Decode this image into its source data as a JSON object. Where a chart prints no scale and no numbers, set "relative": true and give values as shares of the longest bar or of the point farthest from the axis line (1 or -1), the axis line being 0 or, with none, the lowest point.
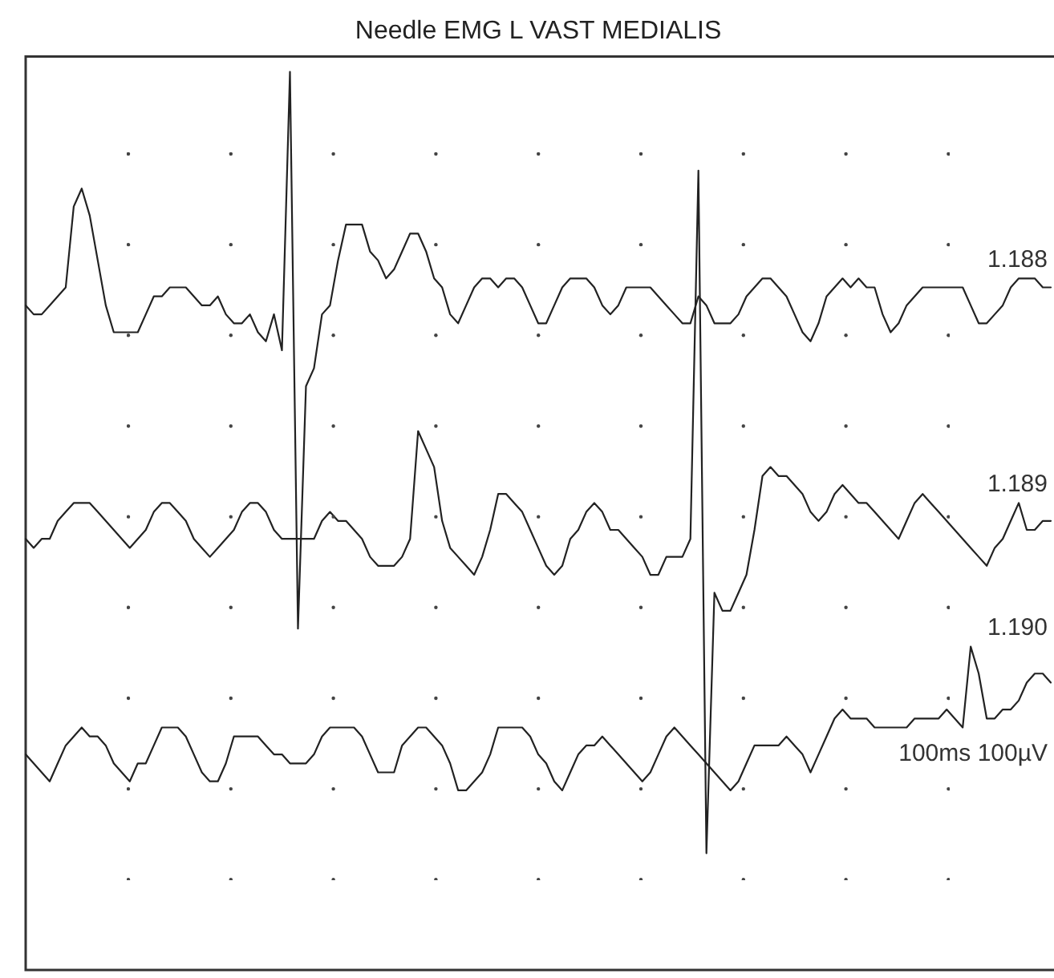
{
  "chart_data": {
    "type": "line",
    "title": "Needle EMG L VAST MEDIALIS",
    "relative": true,
    "legend": false,
    "marker": "none",
    "line_style": "solid",
    "categories": [
      null,
      null,
      null,
      null,
      null,
      null,
      null,
      null,
      null,
      null,
      null,
      null,
      null,
      null,
      null,
      null,
      null,
      null,
      null,
      null,
      null,
      null,
      null,
      null,
      null,
      null,
      null,
      null,
      null,
      null,
      null,
      null,
      null,
      null,
      null,
      null,
      null,
      null,
      null,
      null,
      null,
      null,
      null,
      null,
      null,
      null,
      null,
      null,
      null,
      null,
      null,
      null,
      null,
      null,
      null,
      null,
      null,
      null,
      null,
      null,
      null,
      null,
      null,
      null,
      null,
      null,
      null,
      null,
      null,
      null,
      null,
      null,
      null,
      null,
      null,
      null,
      null,
      null,
      null,
      null,
      null,
      null,
      null,
      null,
      null,
      null,
      null,
      null,
      null,
      null,
      null,
      null,
      null,
      null,
      null,
      null,
      null,
      null,
      null,
      null,
      null,
      null,
      null,
      null,
      null,
      null,
      null,
      null,
      null,
      null,
      null,
      null,
      null,
      null,
      null,
      null,
      null,
      null,
      null,
      null,
      null,
      null,
      null,
      null,
      null,
      null,
      null,
      null,
      null
    ],
    "series": [
      {
        "color": "#222222",
        "values": [
          0.74,
          0.73,
          0.73,
          0.74,
          0.75,
          0.76,
          0.85,
          0.87,
          0.84,
          0.79,
          0.74,
          0.71,
          0.71,
          0.71,
          0.71,
          0.73,
          0.75,
          0.75,
          0.76,
          0.76,
          0.76,
          0.75,
          0.74,
          0.74,
          0.75,
          0.73,
          0.72,
          0.72,
          0.73,
          0.71,
          0.7,
          0.73,
          0.69,
          1.0,
          0.38,
          0.65,
          0.67,
          0.73,
          0.74,
          0.79,
          0.83,
          0.83,
          0.83,
          0.8,
          0.79,
          0.77,
          0.78,
          0.8,
          0.82,
          0.82,
          0.8,
          0.77,
          0.76,
          0.73,
          0.72,
          0.74,
          0.76,
          0.77,
          0.77,
          0.76,
          0.77,
          0.77,
          0.76,
          0.74,
          0.72,
          0.72,
          0.74,
          0.76,
          0.77,
          0.77,
          0.77,
          0.76,
          0.74,
          0.73,
          0.74,
          0.76,
          0.76,
          0.76,
          0.76,
          0.75,
          0.74,
          0.73,
          0.72,
          0.72,
          0.75,
          0.74,
          0.72,
          0.72,
          0.72,
          0.73,
          0.75,
          0.76,
          0.77,
          0.77,
          0.76,
          0.75,
          0.73,
          0.71,
          0.7,
          0.72,
          0.75,
          0.76,
          0.77,
          0.76,
          0.77,
          0.76,
          0.76,
          0.73,
          0.71,
          0.72,
          0.74,
          0.75,
          0.76,
          0.76,
          0.76,
          0.76,
          0.76,
          0.76,
          0.74,
          0.72,
          0.72,
          0.73,
          0.74,
          0.76,
          0.77,
          0.77,
          0.77,
          0.76,
          0.76
        ]
      },
      {
        "color": "#222222",
        "values": [
          0.48,
          0.47,
          0.48,
          0.48,
          0.5,
          0.51,
          0.52,
          0.52,
          0.52,
          0.51,
          0.5,
          0.49,
          0.48,
          0.47,
          0.48,
          0.49,
          0.51,
          0.52,
          0.52,
          0.51,
          0.5,
          0.48,
          0.47,
          0.46,
          0.47,
          0.48,
          0.49,
          0.51,
          0.52,
          0.52,
          0.51,
          0.49,
          0.48,
          0.48,
          0.48,
          0.48,
          0.48,
          0.5,
          0.51,
          0.5,
          0.5,
          0.49,
          0.48,
          0.46,
          0.45,
          0.45,
          0.45,
          0.46,
          0.48,
          0.6,
          0.58,
          0.56,
          0.5,
          0.47,
          0.46,
          0.45,
          0.44,
          0.46,
          0.49,
          0.53,
          0.53,
          0.52,
          0.51,
          0.49,
          0.47,
          0.45,
          0.44,
          0.45,
          0.48,
          0.49,
          0.51,
          0.52,
          0.51,
          0.49,
          0.49,
          0.48,
          0.47,
          0.46,
          0.44,
          0.44,
          0.46,
          0.46,
          0.46,
          0.48,
          0.89,
          0.13,
          0.42,
          0.4,
          0.4,
          0.42,
          0.44,
          0.49,
          0.55,
          0.56,
          0.55,
          0.55,
          0.54,
          0.53,
          0.51,
          0.5,
          0.51,
          0.53,
          0.54,
          0.53,
          0.52,
          0.52,
          0.51,
          0.5,
          0.49,
          0.48,
          0.5,
          0.52,
          0.53,
          0.52,
          0.51,
          0.5,
          0.49,
          0.48,
          0.47,
          0.46,
          0.45,
          0.47,
          0.48,
          0.5,
          0.52,
          0.49,
          0.49,
          0.5,
          0.5
        ]
      },
      {
        "color": "#222222",
        "values": [
          0.24,
          0.23,
          0.22,
          0.21,
          0.23,
          0.25,
          0.26,
          0.27,
          0.26,
          0.26,
          0.25,
          0.23,
          0.22,
          0.21,
          0.23,
          0.23,
          0.25,
          0.27,
          0.27,
          0.27,
          0.26,
          0.24,
          0.22,
          0.21,
          0.21,
          0.23,
          0.26,
          0.26,
          0.26,
          0.26,
          0.25,
          0.24,
          0.24,
          0.23,
          0.23,
          0.23,
          0.24,
          0.26,
          0.27,
          0.27,
          0.27,
          0.27,
          0.26,
          0.24,
          0.22,
          0.22,
          0.22,
          0.25,
          0.26,
          0.27,
          0.27,
          0.26,
          0.25,
          0.23,
          0.2,
          0.2,
          0.21,
          0.22,
          0.24,
          0.27,
          0.27,
          0.27,
          0.27,
          0.26,
          0.24,
          0.23,
          0.21,
          0.2,
          0.22,
          0.24,
          0.25,
          0.25,
          0.26,
          0.25,
          0.24,
          0.23,
          0.22,
          0.21,
          0.22,
          0.24,
          0.26,
          0.27,
          0.26,
          0.25,
          0.24,
          0.23,
          0.22,
          0.21,
          0.2,
          0.21,
          0.23,
          0.25,
          0.25,
          0.25,
          0.25,
          0.26,
          0.25,
          0.24,
          0.22,
          0.24,
          0.26,
          0.28,
          0.29,
          0.28,
          0.28,
          0.28,
          0.27,
          0.27,
          0.27,
          0.27,
          0.27,
          0.28,
          0.28,
          0.28,
          0.28,
          0.29,
          0.28,
          0.27,
          0.36,
          0.33,
          0.28,
          0.28,
          0.29,
          0.29,
          0.3,
          0.32,
          0.33,
          0.33,
          0.32
        ]
      }
    ],
    "annotations": [
      "1.188",
      "1.189",
      "1.190",
      "100ms 100µV"
    ]
  }
}
